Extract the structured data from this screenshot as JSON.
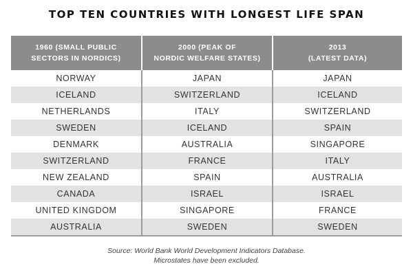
{
  "title": "TOP TEN COUNTRIES WITH LONGEST LIFE SPAN",
  "headers": [
    {
      "line1": "1960 (SMALL PUBLIC",
      "line2": "SECTORS IN NORDICS)"
    },
    {
      "line1": "2000 (PEAK OF",
      "line2": "NORDIC WELFARE STATES)"
    },
    {
      "line1": "2013",
      "line2": "(LATEST DATA)"
    }
  ],
  "rows": [
    [
      "NORWAY",
      "JAPAN",
      "JAPAN"
    ],
    [
      "ICELAND",
      "SWITZERLAND",
      "ICELAND"
    ],
    [
      "NETHERLANDS",
      "ITALY",
      "SWITZERLAND"
    ],
    [
      "SWEDEN",
      "ICELAND",
      "SPAIN"
    ],
    [
      "DENMARK",
      "AUSTRALIA",
      "SINGAPORE"
    ],
    [
      "SWITZERLAND",
      "FRANCE",
      "ITALY"
    ],
    [
      "NEW ZEALAND",
      "SPAIN",
      "AUSTRALIA"
    ],
    [
      "CANADA",
      "ISRAEL",
      "ISRAEL"
    ],
    [
      "UNITED KINGDOM",
      "SINGAPORE",
      "FRANCE"
    ],
    [
      "AUSTRALIA",
      "SWEDEN",
      "SWEDEN"
    ]
  ],
  "source": {
    "line1": "Source: World Bank World Development Indicators Database.",
    "line2": "Microstates have been excluded."
  },
  "colors": {
    "header_bg": "#8c8c8c",
    "header_text": "#ffffff",
    "stripe": "#e2e2e2",
    "divider": "#9a9a9a"
  }
}
